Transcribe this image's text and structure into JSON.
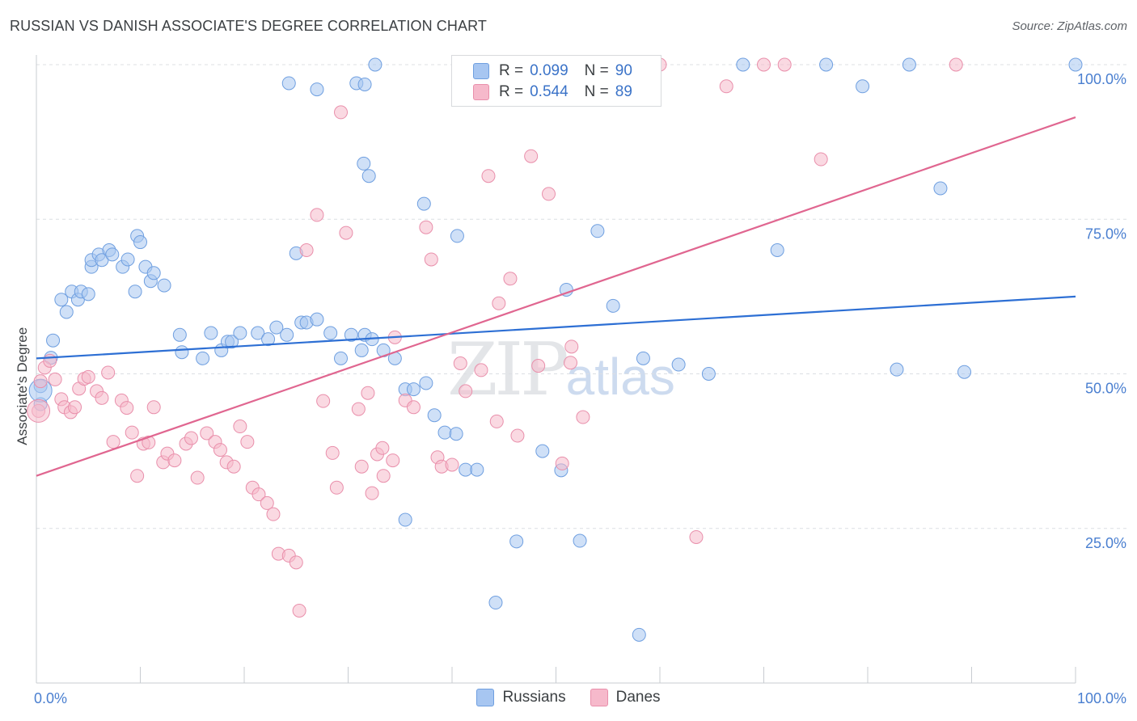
{
  "title": "RUSSIAN VS DANISH ASSOCIATE'S DEGREE CORRELATION CHART",
  "source": "Source: ZipAtlas.com",
  "watermark": {
    "zip": "ZIP",
    "atlas": "atlas"
  },
  "legend": {
    "rows": [
      {
        "r_label": "R =",
        "r_value": "0.099",
        "n_label": "N =",
        "n_value": "90",
        "color": "#a7c6f1"
      },
      {
        "r_label": "R =",
        "r_value": "0.544",
        "n_label": "N =",
        "n_value": "89",
        "color": "#f6b9cb"
      }
    ]
  },
  "bottom_legend": [
    {
      "label": "Russians",
      "color": "#a7c6f1"
    },
    {
      "label": "Danes",
      "color": "#f6b9cb"
    }
  ],
  "colors": {
    "russians_fill": "#a7c6f1",
    "russians_stroke": "#6f9fe0",
    "russians_line": "#2d6fd4",
    "danes_fill": "#f6b9cb",
    "danes_stroke": "#e98fab",
    "danes_line": "#e06690",
    "grid": "#dcdfe3",
    "tick_text": "#4a7fd0"
  },
  "chart_data": {
    "type": "scatter",
    "title": "RUSSIAN VS DANISH ASSOCIATE'S DEGREE CORRELATION CHART",
    "xlabel": "",
    "ylabel": "Associate's Degree",
    "xlim": [
      0,
      100
    ],
    "ylim": [
      0,
      100
    ],
    "x_tick_labels": [
      "0.0%",
      "100.0%"
    ],
    "y_tick_labels": [
      "100.0%",
      "75.0%",
      "50.0%",
      "25.0%"
    ],
    "y_ticks": [
      100,
      75,
      50,
      25
    ],
    "grid": true,
    "legend_position": "top-center",
    "series": [
      {
        "name": "Russians",
        "r": 0.099,
        "n": 90,
        "trend": {
          "x": [
            0,
            100
          ],
          "y": [
            52.5,
            62.5
          ]
        },
        "points": [
          [
            0.4,
            48.0
          ],
          [
            0.4,
            45.1
          ],
          [
            1.4,
            52.6
          ],
          [
            1.6,
            55.4
          ],
          [
            2.4,
            62.0
          ],
          [
            2.9,
            60.0
          ],
          [
            3.4,
            63.3
          ],
          [
            4.0,
            62.0
          ],
          [
            4.3,
            63.3
          ],
          [
            5.0,
            62.9
          ],
          [
            5.3,
            67.3
          ],
          [
            5.3,
            68.4
          ],
          [
            6.0,
            69.3
          ],
          [
            6.3,
            68.4
          ],
          [
            7.0,
            70.0
          ],
          [
            7.3,
            69.3
          ],
          [
            8.3,
            67.3
          ],
          [
            8.8,
            68.5
          ],
          [
            9.7,
            72.3
          ],
          [
            10.0,
            71.3
          ],
          [
            9.5,
            63.3
          ],
          [
            10.5,
            67.3
          ],
          [
            11.0,
            65.0
          ],
          [
            11.3,
            66.3
          ],
          [
            12.3,
            64.3
          ],
          [
            13.8,
            56.3
          ],
          [
            14.0,
            53.5
          ],
          [
            16.0,
            52.5
          ],
          [
            16.8,
            56.6
          ],
          [
            17.8,
            53.8
          ],
          [
            18.4,
            55.2
          ],
          [
            18.8,
            55.2
          ],
          [
            19.6,
            56.6
          ],
          [
            21.3,
            56.6
          ],
          [
            22.3,
            55.6
          ],
          [
            23.1,
            57.5
          ],
          [
            24.1,
            56.3
          ],
          [
            25.0,
            69.5
          ],
          [
            25.5,
            58.3
          ],
          [
            26.0,
            58.3
          ],
          [
            27.0,
            58.8
          ],
          [
            28.3,
            56.6
          ],
          [
            29.3,
            52.5
          ],
          [
            30.3,
            56.3
          ],
          [
            31.3,
            53.8
          ],
          [
            31.6,
            56.3
          ],
          [
            32.3,
            55.6
          ],
          [
            33.4,
            53.8
          ],
          [
            34.5,
            52.5
          ],
          [
            35.5,
            47.5
          ],
          [
            36.3,
            47.5
          ],
          [
            37.5,
            48.5
          ],
          [
            38.3,
            43.3
          ],
          [
            39.3,
            40.5
          ],
          [
            40.4,
            40.3
          ],
          [
            41.3,
            34.5
          ],
          [
            42.4,
            34.5
          ],
          [
            24.3,
            97.0
          ],
          [
            27.0,
            96.0
          ],
          [
            30.8,
            97.0
          ],
          [
            32.0,
            82.0
          ],
          [
            31.5,
            84.0
          ],
          [
            31.6,
            96.8
          ],
          [
            32.6,
            100.0
          ],
          [
            37.3,
            77.5
          ],
          [
            40.5,
            72.3
          ],
          [
            46.3,
            100.0
          ],
          [
            51.6,
            100.0
          ],
          [
            51.0,
            63.6
          ],
          [
            54.0,
            73.1
          ],
          [
            55.5,
            61.0
          ],
          [
            58.4,
            52.5
          ],
          [
            61.8,
            51.5
          ],
          [
            64.7,
            50.0
          ],
          [
            68.0,
            100.0
          ],
          [
            71.3,
            70.0
          ],
          [
            76.0,
            100.0
          ],
          [
            79.5,
            96.5
          ],
          [
            82.8,
            50.7
          ],
          [
            84.0,
            100.0
          ],
          [
            87.0,
            80.0
          ],
          [
            89.3,
            50.3
          ],
          [
            100.0,
            100.0
          ],
          [
            35.5,
            26.4
          ],
          [
            44.2,
            13.0
          ],
          [
            46.2,
            22.9
          ],
          [
            48.7,
            37.5
          ],
          [
            50.5,
            34.4
          ],
          [
            52.3,
            23.0
          ],
          [
            58.0,
            7.8
          ]
        ],
        "large_points": [
          [
            0.4,
            47.3
          ]
        ]
      },
      {
        "name": "Danes",
        "r": 0.544,
        "n": 89,
        "trend": {
          "x": [
            0,
            100
          ],
          "y": [
            33.5,
            91.5
          ]
        },
        "points": [
          [
            0.4,
            48.8
          ],
          [
            0.8,
            51.0
          ],
          [
            1.3,
            52.1
          ],
          [
            1.8,
            49.1
          ],
          [
            2.4,
            45.9
          ],
          [
            2.7,
            44.6
          ],
          [
            3.3,
            43.8
          ],
          [
            3.7,
            44.6
          ],
          [
            4.1,
            47.6
          ],
          [
            4.6,
            49.2
          ],
          [
            5.0,
            49.5
          ],
          [
            5.8,
            47.2
          ],
          [
            6.3,
            46.1
          ],
          [
            6.9,
            50.2
          ],
          [
            7.4,
            39.0
          ],
          [
            8.2,
            45.7
          ],
          [
            8.7,
            44.5
          ],
          [
            9.2,
            40.5
          ],
          [
            9.7,
            33.5
          ],
          [
            10.3,
            38.7
          ],
          [
            10.8,
            38.9
          ],
          [
            11.3,
            44.6
          ],
          [
            12.2,
            35.7
          ],
          [
            12.6,
            37.1
          ],
          [
            13.3,
            36.0
          ],
          [
            14.4,
            38.7
          ],
          [
            14.9,
            39.6
          ],
          [
            15.5,
            33.2
          ],
          [
            16.4,
            40.4
          ],
          [
            17.2,
            39.0
          ],
          [
            17.7,
            37.7
          ],
          [
            18.3,
            35.7
          ],
          [
            19.0,
            35.0
          ],
          [
            19.6,
            41.5
          ],
          [
            20.3,
            39.0
          ],
          [
            20.8,
            31.6
          ],
          [
            21.4,
            30.5
          ],
          [
            22.2,
            29.1
          ],
          [
            22.8,
            27.3
          ],
          [
            23.3,
            20.9
          ],
          [
            24.3,
            20.6
          ],
          [
            25.0,
            19.5
          ],
          [
            25.3,
            11.7
          ],
          [
            26.0,
            70.0
          ],
          [
            27.0,
            75.7
          ],
          [
            27.6,
            45.6
          ],
          [
            28.5,
            37.2
          ],
          [
            28.9,
            31.6
          ],
          [
            29.3,
            92.3
          ],
          [
            29.8,
            72.8
          ],
          [
            31.0,
            44.3
          ],
          [
            31.3,
            35.0
          ],
          [
            31.9,
            46.9
          ],
          [
            32.3,
            30.7
          ],
          [
            32.8,
            37.0
          ],
          [
            33.3,
            38.0
          ],
          [
            34.3,
            36.0
          ],
          [
            34.5,
            55.9
          ],
          [
            35.5,
            45.7
          ],
          [
            36.3,
            44.6
          ],
          [
            37.5,
            73.7
          ],
          [
            38.0,
            68.5
          ],
          [
            38.6,
            36.5
          ],
          [
            39.0,
            35.0
          ],
          [
            40.0,
            35.3
          ],
          [
            40.8,
            51.7
          ],
          [
            41.3,
            47.2
          ],
          [
            42.8,
            50.6
          ],
          [
            43.5,
            82.0
          ],
          [
            44.3,
            42.3
          ],
          [
            44.5,
            61.4
          ],
          [
            45.6,
            65.4
          ],
          [
            46.3,
            40.0
          ],
          [
            47.6,
            85.2
          ],
          [
            48.3,
            51.3
          ],
          [
            49.3,
            79.1
          ],
          [
            50.6,
            35.5
          ],
          [
            51.4,
            51.8
          ],
          [
            51.5,
            54.4
          ],
          [
            52.6,
            43.0
          ],
          [
            60.0,
            100.0
          ],
          [
            63.5,
            23.6
          ],
          [
            66.4,
            96.5
          ],
          [
            70.0,
            100.0
          ],
          [
            72.0,
            100.0
          ],
          [
            75.5,
            84.7
          ],
          [
            88.5,
            100.0
          ],
          [
            33.4,
            33.5
          ],
          [
            0.2,
            44.0
          ]
        ],
        "large_points": [
          [
            0.2,
            44.0
          ]
        ]
      }
    ]
  }
}
